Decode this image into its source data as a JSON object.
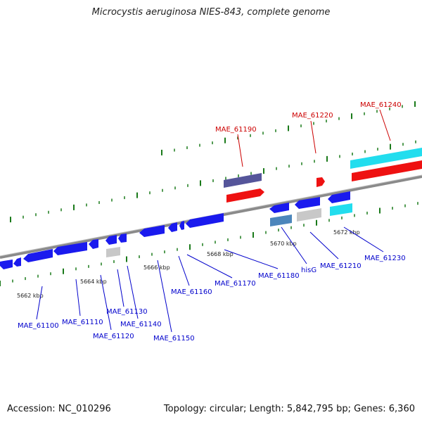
{
  "title": "Microcystis aeruginosa NIES-843, complete genome",
  "footer": {
    "accession": "Accession: NC_010296",
    "summary": "Topology: circular; Length: 5,842,795 bp; Genes: 6,360"
  },
  "ticks": [
    "5662 kbp",
    "5664 kbp",
    "5666 kbp",
    "5668 kbp",
    "5670 kbp",
    "5672 kbp"
  ],
  "genes_top": [
    "MAE_61190",
    "MAE_61220",
    "MAE_61240"
  ],
  "genes_bottom": [
    "MAE_61100",
    "MAE_61110",
    "MAE_61120",
    "MAE_61130",
    "MAE_61140",
    "MAE_61150",
    "MAE_61160",
    "MAE_61170",
    "MAE_61180",
    "hisG",
    "MAE_61210",
    "MAE_61230"
  ],
  "colors": {
    "forward_label": "#cc0000",
    "reverse_label": "#0000cc",
    "reverse_gene": "#1a1aee",
    "forward_gene": "#ee1111",
    "cyan_gene": "#22ddee",
    "purple_gene": "#55559a",
    "steel_gene": "#4c86bb",
    "gray_gene": "#c8c8c8",
    "backbone": "#8a8a8a",
    "tick": "#1a7a1a"
  }
}
